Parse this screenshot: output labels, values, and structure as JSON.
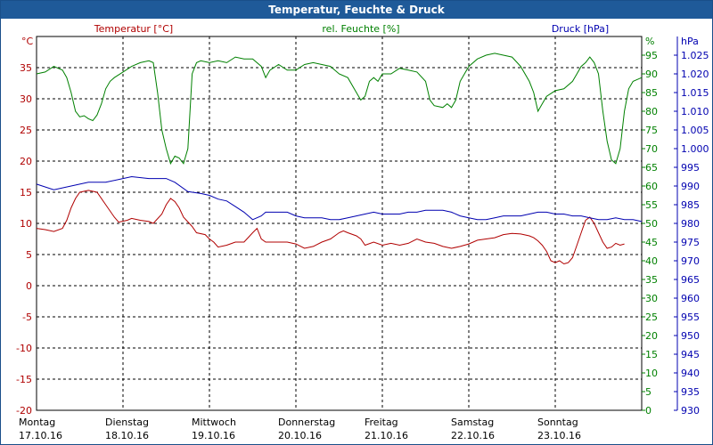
{
  "window": {
    "title": "Temperatur, Feuchte & Druck"
  },
  "colors": {
    "temperature": "#b00000",
    "humidity": "#008000",
    "pressure": "#0000b0",
    "grid": "#000000",
    "titlebar": "#1f5a99"
  },
  "chart_data": {
    "type": "line",
    "title": "Temperatur, Feuchte & Druck",
    "grid": true,
    "x_range_days": [
      0,
      7
    ],
    "x_labels": [
      {
        "day": "Montag",
        "date": "17.10.16"
      },
      {
        "day": "Dienstag",
        "date": "18.10.16"
      },
      {
        "day": "Mittwoch",
        "date": "19.10.16"
      },
      {
        "day": "Donnerstag",
        "date": "20.10.16"
      },
      {
        "day": "Freitag",
        "date": "21.10.16"
      },
      {
        "day": "Samstag",
        "date": "22.10.16"
      },
      {
        "day": "Sonntag",
        "date": "23.10.16"
      }
    ],
    "axes": {
      "temperature": {
        "label": "Temperatur [°C]",
        "unit": "°C",
        "range": [
          -20,
          40
        ],
        "ticks": [
          -20,
          -15,
          -10,
          -5,
          0,
          5,
          10,
          15,
          20,
          25,
          30,
          35
        ]
      },
      "humidity": {
        "label": "rel. Feuchte [%]",
        "unit": "%",
        "range": [
          0,
          100
        ],
        "ticks": [
          0,
          5,
          10,
          15,
          20,
          25,
          30,
          35,
          40,
          45,
          50,
          55,
          60,
          65,
          70,
          75,
          80,
          85,
          90,
          95
        ]
      },
      "pressure": {
        "label": "Druck [hPa]",
        "unit": "hPa",
        "range": [
          930,
          1030
        ],
        "ticks": [
          "930",
          "935",
          "940",
          "945",
          "950",
          "955",
          "960",
          "965",
          "970",
          "975",
          "980",
          "985",
          "990",
          "995",
          "1.000",
          "1.005",
          "1.010",
          "1.015",
          "1.020",
          "1.025"
        ]
      }
    },
    "series": [
      {
        "name": "Temperatur [°C]",
        "axis": "temperature",
        "points": [
          [
            0.0,
            9.2
          ],
          [
            0.1,
            9.0
          ],
          [
            0.2,
            8.7
          ],
          [
            0.3,
            9.2
          ],
          [
            0.35,
            10.5
          ],
          [
            0.4,
            12.5
          ],
          [
            0.45,
            14.0
          ],
          [
            0.5,
            15.0
          ],
          [
            0.6,
            15.3
          ],
          [
            0.7,
            15.0
          ],
          [
            0.8,
            13.0
          ],
          [
            0.9,
            11.0
          ],
          [
            0.95,
            10.2
          ],
          [
            1.05,
            10.5
          ],
          [
            1.1,
            10.8
          ],
          [
            1.2,
            10.5
          ],
          [
            1.3,
            10.3
          ],
          [
            1.35,
            10.0
          ],
          [
            1.45,
            11.5
          ],
          [
            1.5,
            13.0
          ],
          [
            1.55,
            14.0
          ],
          [
            1.6,
            13.5
          ],
          [
            1.65,
            12.5
          ],
          [
            1.7,
            11.0
          ],
          [
            1.8,
            9.5
          ],
          [
            1.85,
            8.5
          ],
          [
            1.95,
            8.2
          ],
          [
            2.0,
            7.5
          ],
          [
            2.05,
            7.0
          ],
          [
            2.1,
            6.2
          ],
          [
            2.2,
            6.5
          ],
          [
            2.3,
            7.0
          ],
          [
            2.4,
            7.0
          ],
          [
            2.5,
            8.5
          ],
          [
            2.55,
            9.2
          ],
          [
            2.6,
            7.5
          ],
          [
            2.65,
            7.0
          ],
          [
            2.8,
            7.0
          ],
          [
            2.9,
            7.0
          ],
          [
            3.0,
            6.7
          ],
          [
            3.1,
            6.0
          ],
          [
            3.2,
            6.3
          ],
          [
            3.3,
            7.0
          ],
          [
            3.4,
            7.5
          ],
          [
            3.5,
            8.5
          ],
          [
            3.55,
            8.8
          ],
          [
            3.6,
            8.5
          ],
          [
            3.7,
            8.0
          ],
          [
            3.75,
            7.5
          ],
          [
            3.8,
            6.5
          ],
          [
            3.9,
            7.0
          ],
          [
            4.0,
            6.5
          ],
          [
            4.1,
            6.8
          ],
          [
            4.2,
            6.5
          ],
          [
            4.3,
            6.8
          ],
          [
            4.4,
            7.5
          ],
          [
            4.5,
            7.0
          ],
          [
            4.6,
            6.8
          ],
          [
            4.7,
            6.3
          ],
          [
            4.8,
            6.0
          ],
          [
            4.9,
            6.3
          ],
          [
            5.0,
            6.7
          ],
          [
            5.1,
            7.3
          ],
          [
            5.2,
            7.5
          ],
          [
            5.3,
            7.7
          ],
          [
            5.4,
            8.2
          ],
          [
            5.5,
            8.4
          ],
          [
            5.6,
            8.3
          ],
          [
            5.7,
            8.0
          ],
          [
            5.75,
            7.7
          ],
          [
            5.8,
            7.2
          ],
          [
            5.85,
            6.5
          ],
          [
            5.9,
            5.5
          ],
          [
            5.95,
            4.0
          ],
          [
            6.0,
            3.7
          ],
          [
            6.05,
            4.0
          ],
          [
            6.1,
            3.5
          ],
          [
            6.15,
            3.7
          ],
          [
            6.2,
            4.5
          ],
          [
            6.25,
            6.5
          ],
          [
            6.3,
            8.5
          ],
          [
            6.35,
            10.5
          ],
          [
            6.4,
            11.0
          ],
          [
            6.45,
            10.0
          ],
          [
            6.5,
            8.5
          ],
          [
            6.55,
            7.0
          ],
          [
            6.6,
            6.0
          ],
          [
            6.65,
            6.2
          ],
          [
            6.7,
            6.8
          ],
          [
            6.75,
            6.5
          ],
          [
            6.8,
            6.7
          ]
        ]
      },
      {
        "name": "rel. Feuchte [%]",
        "axis": "humidity",
        "points": [
          [
            0.0,
            90.0
          ],
          [
            0.1,
            90.5
          ],
          [
            0.2,
            92.0
          ],
          [
            0.3,
            91.0
          ],
          [
            0.35,
            89.0
          ],
          [
            0.4,
            85.0
          ],
          [
            0.45,
            80.0
          ],
          [
            0.5,
            78.5
          ],
          [
            0.55,
            78.8
          ],
          [
            0.6,
            78.0
          ],
          [
            0.65,
            77.5
          ],
          [
            0.7,
            79.0
          ],
          [
            0.75,
            82.0
          ],
          [
            0.8,
            86.0
          ],
          [
            0.85,
            88.0
          ],
          [
            0.9,
            89.0
          ],
          [
            1.0,
            90.5
          ],
          [
            1.1,
            92.0
          ],
          [
            1.2,
            93.0
          ],
          [
            1.3,
            93.5
          ],
          [
            1.35,
            93.0
          ],
          [
            1.4,
            85.0
          ],
          [
            1.45,
            75.0
          ],
          [
            1.5,
            70.0
          ],
          [
            1.55,
            66.0
          ],
          [
            1.6,
            68.0
          ],
          [
            1.65,
            67.5
          ],
          [
            1.7,
            66.0
          ],
          [
            1.75,
            70.0
          ],
          [
            1.8,
            90.0
          ],
          [
            1.85,
            93.0
          ],
          [
            1.9,
            93.5
          ],
          [
            2.0,
            93.0
          ],
          [
            2.1,
            93.5
          ],
          [
            2.2,
            93.0
          ],
          [
            2.3,
            94.5
          ],
          [
            2.4,
            94.0
          ],
          [
            2.5,
            94.0
          ],
          [
            2.6,
            92.0
          ],
          [
            2.65,
            89.0
          ],
          [
            2.7,
            91.0
          ],
          [
            2.8,
            92.5
          ],
          [
            2.9,
            91.0
          ],
          [
            3.0,
            91.0
          ],
          [
            3.1,
            92.5
          ],
          [
            3.2,
            93.0
          ],
          [
            3.3,
            92.5
          ],
          [
            3.4,
            92.0
          ],
          [
            3.5,
            90.0
          ],
          [
            3.6,
            89.0
          ],
          [
            3.7,
            85.0
          ],
          [
            3.75,
            83.0
          ],
          [
            3.8,
            84.0
          ],
          [
            3.85,
            88.0
          ],
          [
            3.9,
            89.0
          ],
          [
            3.95,
            88.0
          ],
          [
            4.0,
            90.0
          ],
          [
            4.1,
            90.0
          ],
          [
            4.2,
            91.5
          ],
          [
            4.3,
            91.0
          ],
          [
            4.4,
            90.5
          ],
          [
            4.5,
            88.0
          ],
          [
            4.55,
            83.0
          ],
          [
            4.6,
            81.5
          ],
          [
            4.7,
            81.0
          ],
          [
            4.75,
            82.0
          ],
          [
            4.8,
            81.0
          ],
          [
            4.85,
            83.0
          ],
          [
            4.9,
            88.0
          ],
          [
            5.0,
            92.0
          ],
          [
            5.1,
            94.0
          ],
          [
            5.2,
            95.0
          ],
          [
            5.3,
            95.5
          ],
          [
            5.4,
            95.0
          ],
          [
            5.5,
            94.5
          ],
          [
            5.6,
            92.0
          ],
          [
            5.7,
            88.0
          ],
          [
            5.75,
            85.0
          ],
          [
            5.8,
            80.0
          ],
          [
            5.85,
            82.0
          ],
          [
            5.9,
            84.0
          ],
          [
            6.0,
            85.5
          ],
          [
            6.1,
            86.0
          ],
          [
            6.2,
            88.0
          ],
          [
            6.25,
            90.0
          ],
          [
            6.3,
            92.0
          ],
          [
            6.35,
            93.0
          ],
          [
            6.4,
            94.5
          ],
          [
            6.45,
            93.0
          ],
          [
            6.5,
            90.0
          ],
          [
            6.55,
            80.0
          ],
          [
            6.6,
            72.0
          ],
          [
            6.65,
            67.0
          ],
          [
            6.7,
            66.0
          ],
          [
            6.75,
            70.0
          ],
          [
            6.8,
            80.0
          ],
          [
            6.85,
            86.0
          ],
          [
            6.9,
            88.0
          ],
          [
            6.95,
            88.5
          ],
          [
            7.0,
            89.0
          ]
        ]
      },
      {
        "name": "Druck [hPa]",
        "axis": "pressure",
        "points": [
          [
            0.0,
            990.5
          ],
          [
            0.2,
            989.0
          ],
          [
            0.4,
            990.0
          ],
          [
            0.6,
            991.0
          ],
          [
            0.8,
            991.0
          ],
          [
            1.0,
            992.0
          ],
          [
            1.1,
            992.5
          ],
          [
            1.3,
            992.0
          ],
          [
            1.5,
            992.0
          ],
          [
            1.6,
            991.0
          ],
          [
            1.75,
            988.5
          ],
          [
            1.9,
            988.0
          ],
          [
            2.0,
            987.5
          ],
          [
            2.1,
            986.5
          ],
          [
            2.2,
            986.0
          ],
          [
            2.3,
            984.5
          ],
          [
            2.4,
            983.0
          ],
          [
            2.5,
            981.0
          ],
          [
            2.6,
            982.0
          ],
          [
            2.65,
            983.0
          ],
          [
            2.8,
            983.0
          ],
          [
            2.9,
            983.0
          ],
          [
            3.0,
            982.0
          ],
          [
            3.1,
            981.5
          ],
          [
            3.2,
            981.5
          ],
          [
            3.3,
            981.5
          ],
          [
            3.4,
            981.0
          ],
          [
            3.5,
            981.0
          ],
          [
            3.6,
            981.5
          ],
          [
            3.7,
            982.0
          ],
          [
            3.8,
            982.5
          ],
          [
            3.9,
            983.0
          ],
          [
            4.0,
            982.5
          ],
          [
            4.1,
            982.5
          ],
          [
            4.2,
            982.5
          ],
          [
            4.3,
            983.0
          ],
          [
            4.4,
            983.0
          ],
          [
            4.5,
            983.5
          ],
          [
            4.6,
            983.5
          ],
          [
            4.7,
            983.5
          ],
          [
            4.8,
            983.0
          ],
          [
            4.9,
            982.0
          ],
          [
            5.0,
            981.5
          ],
          [
            5.1,
            981.0
          ],
          [
            5.2,
            981.0
          ],
          [
            5.3,
            981.5
          ],
          [
            5.4,
            982.0
          ],
          [
            5.5,
            982.0
          ],
          [
            5.6,
            982.0
          ],
          [
            5.7,
            982.5
          ],
          [
            5.8,
            983.0
          ],
          [
            5.9,
            983.0
          ],
          [
            6.0,
            982.5
          ],
          [
            6.1,
            982.5
          ],
          [
            6.2,
            982.0
          ],
          [
            6.3,
            982.0
          ],
          [
            6.4,
            981.5
          ],
          [
            6.5,
            981.0
          ],
          [
            6.6,
            981.0
          ],
          [
            6.7,
            981.5
          ],
          [
            6.8,
            981.0
          ],
          [
            6.9,
            981.0
          ],
          [
            7.0,
            980.5
          ]
        ]
      }
    ]
  }
}
